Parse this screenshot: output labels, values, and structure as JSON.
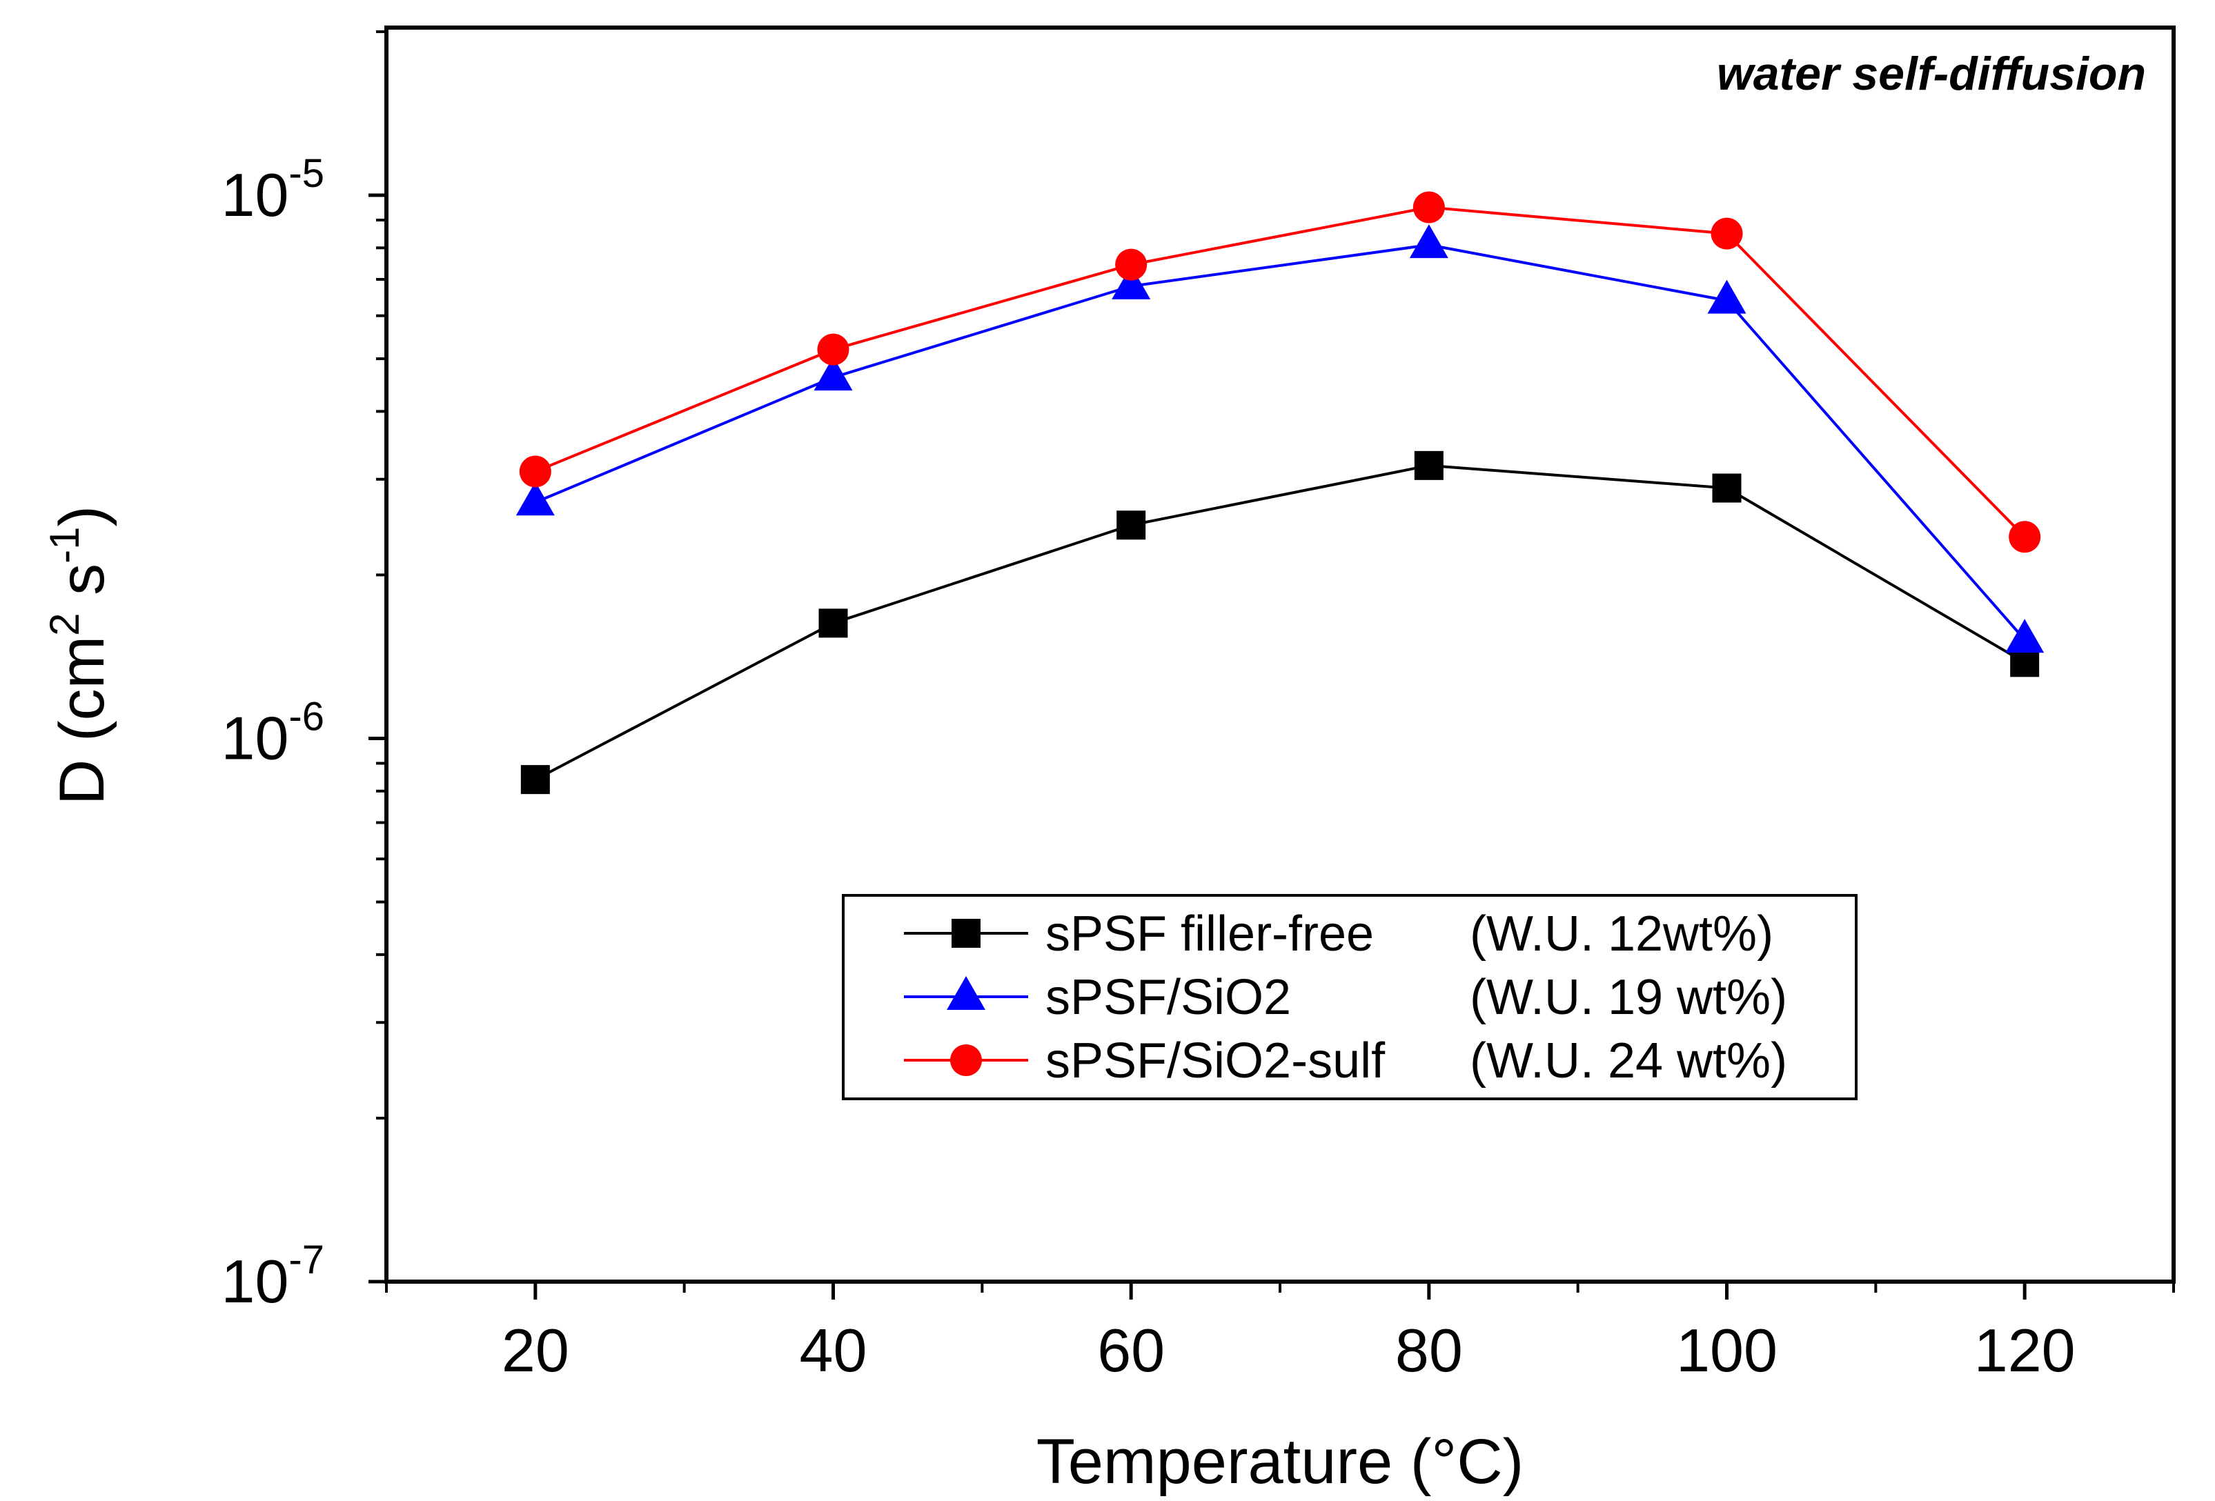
{
  "chart_data": {
    "type": "line",
    "title": "",
    "annotation": "water self-diffusion",
    "xlabel": "Temperature (°C)",
    "ylabel": {
      "base": "D (cm",
      "sup1": "2",
      "mid": " s",
      "sup2": "-1",
      "end": ")"
    },
    "xlim": [
      10,
      130
    ],
    "ylim": [
      1e-07,
      2e-05
    ],
    "yscale": "log",
    "x_ticks": [
      20,
      40,
      60,
      80,
      100,
      120
    ],
    "x_tick_labels": [
      "20",
      "40",
      "60",
      "80",
      "100",
      "120"
    ],
    "x_minor_ticks": [
      10,
      30,
      50,
      70,
      90,
      110,
      130
    ],
    "y_ticks": [
      {
        "value": 1e-07,
        "base": "10",
        "exp": "-7"
      },
      {
        "value": 1e-06,
        "base": "10",
        "exp": "-6"
      },
      {
        "value": 1e-05,
        "base": "10",
        "exp": "-5"
      }
    ],
    "y_minor_ticks": [
      2e-07,
      3e-07,
      4e-07,
      5e-07,
      6e-07,
      7e-07,
      8e-07,
      9e-07,
      2e-06,
      3e-06,
      4e-06,
      5e-06,
      6e-06,
      7e-06,
      8e-06,
      9e-06,
      2e-05
    ],
    "grid": false,
    "legend_position": "center-bottom",
    "x": [
      20,
      40,
      60,
      80,
      100,
      120
    ],
    "series": [
      {
        "name": "sPSF filler-free",
        "note": "(W.U. 12wt%)",
        "color": "#000000",
        "marker": "square",
        "values": [
          8.4e-07,
          1.63e-06,
          2.47e-06,
          3.18e-06,
          2.89e-06,
          1.38e-06
        ]
      },
      {
        "name": "sPSF/SiO2",
        "note": "(W.U. 19 wt%)",
        "color": "#0000ff",
        "marker": "triangle",
        "values": [
          2.72e-06,
          4.62e-06,
          6.8e-06,
          8.1e-06,
          6.4e-06,
          1.52e-06
        ]
      },
      {
        "name": "sPSF/SiO2-sulf",
        "note": "(W.U. 24 wt%)",
        "color": "#ff0000",
        "marker": "circle",
        "values": [
          3.1e-06,
          5.2e-06,
          7.45e-06,
          9.5e-06,
          8.5e-06,
          2.35e-06
        ]
      }
    ]
  }
}
